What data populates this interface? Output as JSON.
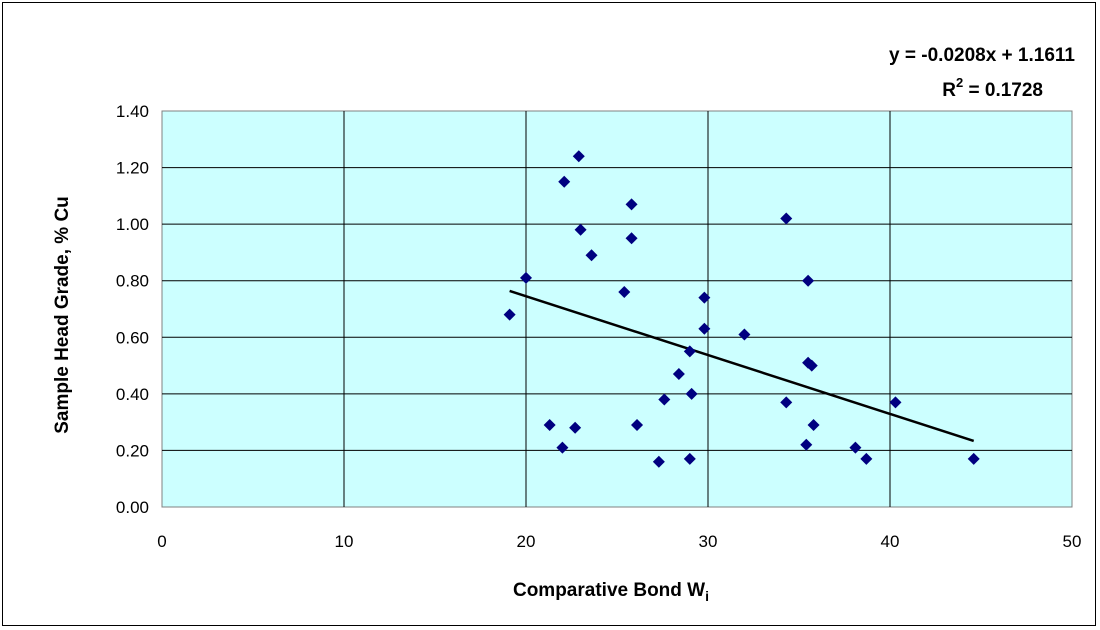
{
  "chart_data": {
    "type": "scatter",
    "xlabel": "Comparative Bond W",
    "xlabel_subscript": "i",
    "ylabel": "Sample Head Grade, % Cu",
    "xlim": [
      0,
      50
    ],
    "ylim": [
      0,
      1.4
    ],
    "x_ticks": [
      "0",
      "10",
      "20",
      "30",
      "40",
      "50"
    ],
    "y_ticks": [
      "0.00",
      "0.20",
      "0.40",
      "0.60",
      "0.80",
      "1.00",
      "1.20",
      "1.40"
    ],
    "grid": true,
    "plot_background": "#ccffff",
    "marker_color": "#000080",
    "points": [
      {
        "x": 19.1,
        "y": 0.68
      },
      {
        "x": 20.0,
        "y": 0.81
      },
      {
        "x": 21.3,
        "y": 0.29
      },
      {
        "x": 22.0,
        "y": 0.21
      },
      {
        "x": 22.1,
        "y": 1.15
      },
      {
        "x": 22.7,
        "y": 0.28
      },
      {
        "x": 22.9,
        "y": 1.24
      },
      {
        "x": 23.0,
        "y": 0.98
      },
      {
        "x": 23.6,
        "y": 0.89
      },
      {
        "x": 25.4,
        "y": 0.76
      },
      {
        "x": 25.8,
        "y": 1.07
      },
      {
        "x": 25.8,
        "y": 0.95
      },
      {
        "x": 26.1,
        "y": 0.29
      },
      {
        "x": 27.3,
        "y": 0.16
      },
      {
        "x": 27.6,
        "y": 0.38
      },
      {
        "x": 28.4,
        "y": 0.47
      },
      {
        "x": 29.0,
        "y": 0.17
      },
      {
        "x": 29.0,
        "y": 0.55
      },
      {
        "x": 29.1,
        "y": 0.4
      },
      {
        "x": 29.8,
        "y": 0.74
      },
      {
        "x": 29.8,
        "y": 0.63
      },
      {
        "x": 32.0,
        "y": 0.61
      },
      {
        "x": 34.3,
        "y": 1.02
      },
      {
        "x": 34.3,
        "y": 0.37
      },
      {
        "x": 35.4,
        "y": 0.22
      },
      {
        "x": 35.5,
        "y": 0.8
      },
      {
        "x": 35.5,
        "y": 0.51
      },
      {
        "x": 35.7,
        "y": 0.5
      },
      {
        "x": 35.8,
        "y": 0.29
      },
      {
        "x": 38.1,
        "y": 0.21
      },
      {
        "x": 38.7,
        "y": 0.17
      },
      {
        "x": 40.3,
        "y": 0.37
      },
      {
        "x": 44.6,
        "y": 0.17
      }
    ],
    "trendline": {
      "type": "linear",
      "slope": -0.0208,
      "intercept": 1.1611,
      "x_range": [
        19.1,
        44.6
      ],
      "equation": "y = -0.0208x + 1.1611",
      "r2_label": "R",
      "r2_superscript": "2",
      "r2_value": " = 0.1728"
    }
  }
}
